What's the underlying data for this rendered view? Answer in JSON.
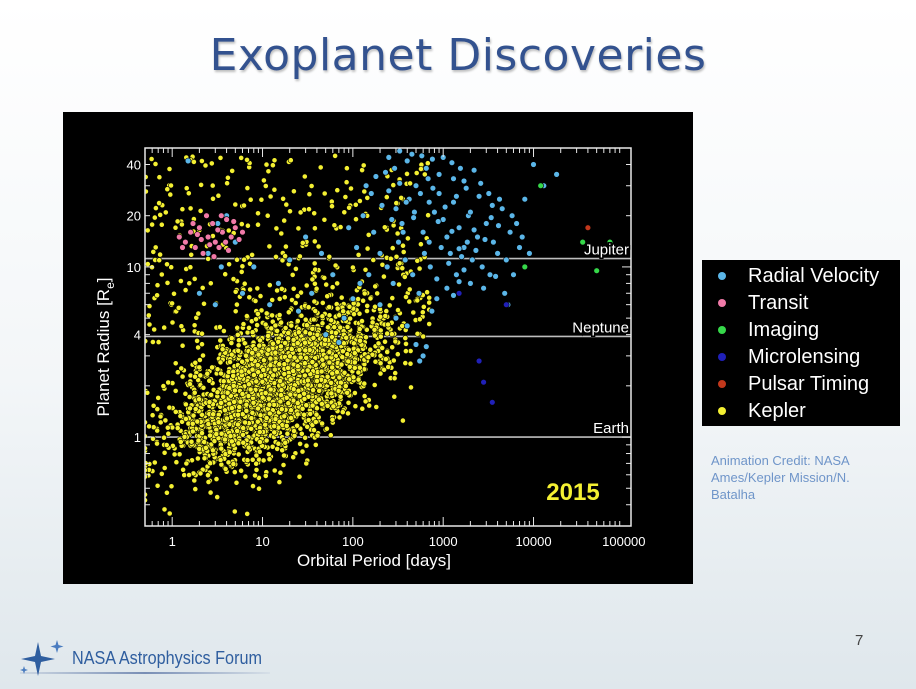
{
  "slide": {
    "title": "Exoplanet Discoveries",
    "page_number": "7",
    "credit": "Animation Credit: NASA Ames/Kepler Mission/N. Batalha",
    "footer": "NASA Astrophysics Forum",
    "footer_icon": "star-sparkle-icon"
  },
  "legend": {
    "items": [
      {
        "label": "Radial Velocity",
        "color": "#5bb6e8"
      },
      {
        "label": "Transit",
        "color": "#f07aa8"
      },
      {
        "label": "Imaging",
        "color": "#36d84a"
      },
      {
        "label": "Microlensing",
        "color": "#2020b8"
      },
      {
        "label": "Pulsar Timing",
        "color": "#c2381c"
      },
      {
        "label": "Kepler",
        "color": "#f4f032"
      }
    ]
  },
  "chart_data": {
    "type": "scatter",
    "xlabel": "Orbital Period [days]",
    "ylabel_main": "Planet Radius [R",
    "ylabel_sub": "e",
    "ylabel_end": "]",
    "x_scale": "log",
    "y_scale": "log",
    "xlim": [
      0.5,
      120000
    ],
    "ylim": [
      0.3,
      50
    ],
    "x_ticks": [
      {
        "value": 1,
        "label": "1"
      },
      {
        "value": 10,
        "label": "10"
      },
      {
        "value": 100,
        "label": "100"
      },
      {
        "value": 1000,
        "label": "1000"
      },
      {
        "value": 10000,
        "label": "10000"
      },
      {
        "value": 100000,
        "label": "100000"
      }
    ],
    "y_ticks": [
      {
        "value": 1,
        "label": "1"
      },
      {
        "value": 4,
        "label": "4"
      },
      {
        "value": 10,
        "label": "10"
      },
      {
        "value": 20,
        "label": "20"
      },
      {
        "value": 40,
        "label": "40"
      }
    ],
    "reference_lines": [
      {
        "label": "Jupiter",
        "y": 11.2
      },
      {
        "label": "Neptune",
        "y": 3.9
      },
      {
        "label": "Earth",
        "y": 1
      }
    ],
    "year_label": "2015",
    "year_color": "#f4f032",
    "grid": false,
    "legend_position": "right-outside",
    "series": [
      {
        "name": "Radial Velocity",
        "color": "#5bb6e8",
        "points": [
          [
            180,
            34
          ],
          [
            250,
            28
          ],
          [
            300,
            22
          ],
          [
            350,
            18
          ],
          [
            420,
            25
          ],
          [
            500,
            30
          ],
          [
            600,
            16
          ],
          [
            700,
            14
          ],
          [
            800,
            21
          ],
          [
            900,
            27
          ],
          [
            1000,
            19
          ],
          [
            1100,
            15
          ],
          [
            1200,
            12
          ],
          [
            1300,
            24
          ],
          [
            1500,
            17
          ],
          [
            1700,
            13
          ],
          [
            1900,
            20
          ],
          [
            2100,
            11
          ],
          [
            2400,
            15
          ],
          [
            2700,
            10
          ],
          [
            3000,
            18
          ],
          [
            3300,
            9
          ],
          [
            3600,
            14
          ],
          [
            4000,
            12
          ],
          [
            4500,
            22
          ],
          [
            5000,
            11
          ],
          [
            5500,
            16
          ],
          [
            6000,
            9
          ],
          [
            7000,
            13
          ],
          [
            8000,
            25
          ],
          [
            10000,
            40
          ],
          [
            13000,
            30
          ],
          [
            18000,
            35
          ],
          [
            250,
            44
          ],
          [
            400,
            42
          ],
          [
            650,
            38
          ],
          [
            900,
            35
          ],
          [
            1300,
            33
          ],
          [
            1800,
            29
          ],
          [
            2500,
            26
          ],
          [
            3500,
            23
          ],
          [
            130,
            20
          ],
          [
            170,
            16
          ],
          [
            200,
            12
          ],
          [
            240,
            10
          ],
          [
            280,
            8
          ],
          [
            320,
            14
          ],
          [
            380,
            11
          ],
          [
            460,
            9
          ],
          [
            540,
            7
          ],
          [
            620,
            12
          ],
          [
            720,
            10
          ],
          [
            850,
            8.5
          ],
          [
            950,
            13
          ],
          [
            1150,
            10.5
          ],
          [
            1400,
            9
          ],
          [
            1600,
            11.5
          ],
          [
            2000,
            8
          ],
          [
            2300,
            12.5
          ],
          [
            2800,
            7.5
          ],
          [
            3800,
            8.8
          ],
          [
            4800,
            7
          ],
          [
            5200,
            6
          ],
          [
            200,
            6
          ],
          [
            300,
            5
          ],
          [
            400,
            4.5
          ],
          [
            500,
            3.5
          ],
          [
            600,
            3
          ],
          [
            150,
            9
          ],
          [
            110,
            13
          ],
          [
            90,
            17
          ],
          [
            160,
            27
          ],
          [
            230,
            36
          ],
          [
            330,
            48
          ],
          [
            450,
            46
          ],
          [
            580,
            45
          ],
          [
            760,
            43
          ],
          [
            1000,
            44
          ],
          [
            1250,
            41
          ],
          [
            1550,
            38
          ],
          [
            2200,
            37
          ],
          [
            1700,
            32
          ],
          [
            2600,
            31
          ],
          [
            3200,
            27
          ],
          [
            4200,
            25
          ],
          [
            5800,
            20
          ],
          [
            6500,
            18
          ],
          [
            7500,
            15
          ],
          [
            9000,
            12
          ],
          [
            2000,
            21
          ],
          [
            1400,
            26
          ],
          [
            700,
            24
          ],
          [
            480,
            21
          ],
          [
            360,
            16
          ],
          [
            270,
            19
          ],
          [
            210,
            23
          ],
          [
            140,
            30
          ],
          [
            120,
            8
          ],
          [
            100,
            6.5
          ],
          [
            80,
            5
          ],
          [
            60,
            9
          ],
          [
            45,
            12
          ],
          [
            30,
            15
          ],
          [
            20,
            11
          ],
          [
            15,
            8
          ],
          [
            12,
            6
          ],
          [
            8,
            10
          ],
          [
            6,
            7
          ],
          [
            5,
            14
          ],
          [
            4,
            20
          ],
          [
            3.5,
            10
          ],
          [
            3,
            6
          ],
          [
            2.5,
            12
          ],
          [
            2,
            7
          ],
          [
            3.2,
            18
          ],
          [
            1.5,
            42
          ],
          [
            50,
            4
          ],
          [
            70,
            3.6
          ],
          [
            35,
            7
          ],
          [
            25,
            5.5
          ],
          [
            550,
            2.8
          ],
          [
            650,
            3.4
          ],
          [
            750,
            5.5
          ],
          [
            850,
            6.5
          ],
          [
            1100,
            7.5
          ],
          [
            1300,
            6.8
          ],
          [
            1500,
            8.2
          ],
          [
            1700,
            9.6
          ],
          [
            2900,
            14.5
          ],
          [
            3400,
            19.5
          ],
          [
            4100,
            17.5
          ],
          [
            2200,
            16.5
          ],
          [
            1850,
            14
          ],
          [
            1500,
            12.8
          ],
          [
            1250,
            16.2
          ],
          [
            1050,
            22.5
          ],
          [
            880,
            18.5
          ],
          [
            770,
            29
          ],
          [
            680,
            33
          ],
          [
            560,
            27
          ],
          [
            470,
            19.5
          ],
          [
            390,
            24
          ],
          [
            330,
            31
          ],
          [
            290,
            38
          ]
        ]
      },
      {
        "name": "Transit",
        "color": "#f07aa8",
        "points": [
          [
            1.2,
            15
          ],
          [
            1.4,
            14
          ],
          [
            1.6,
            16
          ],
          [
            1.8,
            13
          ],
          [
            2.0,
            17
          ],
          [
            2.2,
            12
          ],
          [
            2.5,
            15
          ],
          [
            2.8,
            18
          ],
          [
            3.0,
            14
          ],
          [
            3.3,
            13
          ],
          [
            3.6,
            16
          ],
          [
            4.0,
            19
          ],
          [
            4.5,
            15
          ],
          [
            5.0,
            17
          ],
          [
            1.3,
            13
          ],
          [
            1.7,
            18
          ],
          [
            2.1,
            14.5
          ],
          [
            2.6,
            13.5
          ],
          [
            3.2,
            16.5
          ],
          [
            3.9,
            14
          ],
          [
            4.8,
            18.5
          ],
          [
            5.5,
            14.5
          ],
          [
            6.0,
            16
          ],
          [
            2.4,
            20
          ],
          [
            1.9,
            15.5
          ],
          [
            3.5,
            20
          ],
          [
            2.9,
            11.5
          ],
          [
            4.2,
            12.5
          ]
        ]
      },
      {
        "name": "Imaging",
        "color": "#36d84a",
        "points": [
          [
            12000,
            30
          ],
          [
            35000,
            14
          ],
          [
            70000,
            14
          ],
          [
            8000,
            10
          ],
          [
            50000,
            9.5
          ]
        ]
      },
      {
        "name": "Microlensing",
        "color": "#2020b8",
        "points": [
          [
            2500,
            2.8
          ],
          [
            3500,
            1.6
          ],
          [
            2800,
            2.1
          ],
          [
            5000,
            6
          ],
          [
            1500,
            7
          ]
        ]
      },
      {
        "name": "Pulsar Timing",
        "color": "#c2381c",
        "points": [
          [
            40000,
            17
          ]
        ]
      }
    ],
    "kepler": {
      "name": "Kepler",
      "color": "#f4f032",
      "point_count": 3600,
      "core_center": {
        "period": 14,
        "radius": 2.0
      },
      "period_range": [
        0.5,
        700
      ],
      "radius_range": [
        0.35,
        45
      ]
    }
  }
}
